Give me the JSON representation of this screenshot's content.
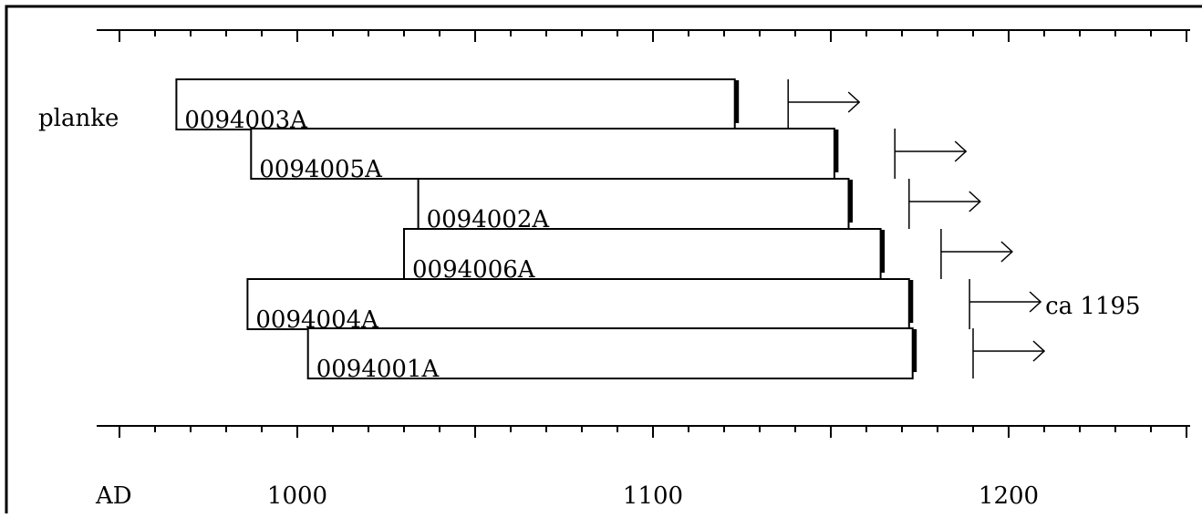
{
  "chart_data": {
    "type": "bar",
    "title": "",
    "xlabel": "AD",
    "ylabel": "",
    "xlim": [
      949,
      1250
    ],
    "group_label": "planke",
    "x_tick_labels": [
      "1000",
      "1100",
      "1200"
    ],
    "x_tick_label_values": [
      1000,
      1100,
      1200
    ],
    "minor_tick_step": 10,
    "grid": false,
    "series": [
      {
        "name": "0094003A",
        "start": 966,
        "end": 1123,
        "felling_after": 1138
      },
      {
        "name": "0094005A",
        "start": 987,
        "end": 1151,
        "felling_after": 1168
      },
      {
        "name": "0094002A",
        "start": 1034,
        "end": 1155,
        "felling_after": 1172
      },
      {
        "name": "0094006A",
        "start": 1030,
        "end": 1164,
        "felling_after": 1181
      },
      {
        "name": "0094004A",
        "start": 986,
        "end": 1172,
        "felling_after": 1189,
        "annotation": "ca 1195"
      },
      {
        "name": "0094001A",
        "start": 1003,
        "end": 1173,
        "felling_after": 1190
      }
    ]
  }
}
